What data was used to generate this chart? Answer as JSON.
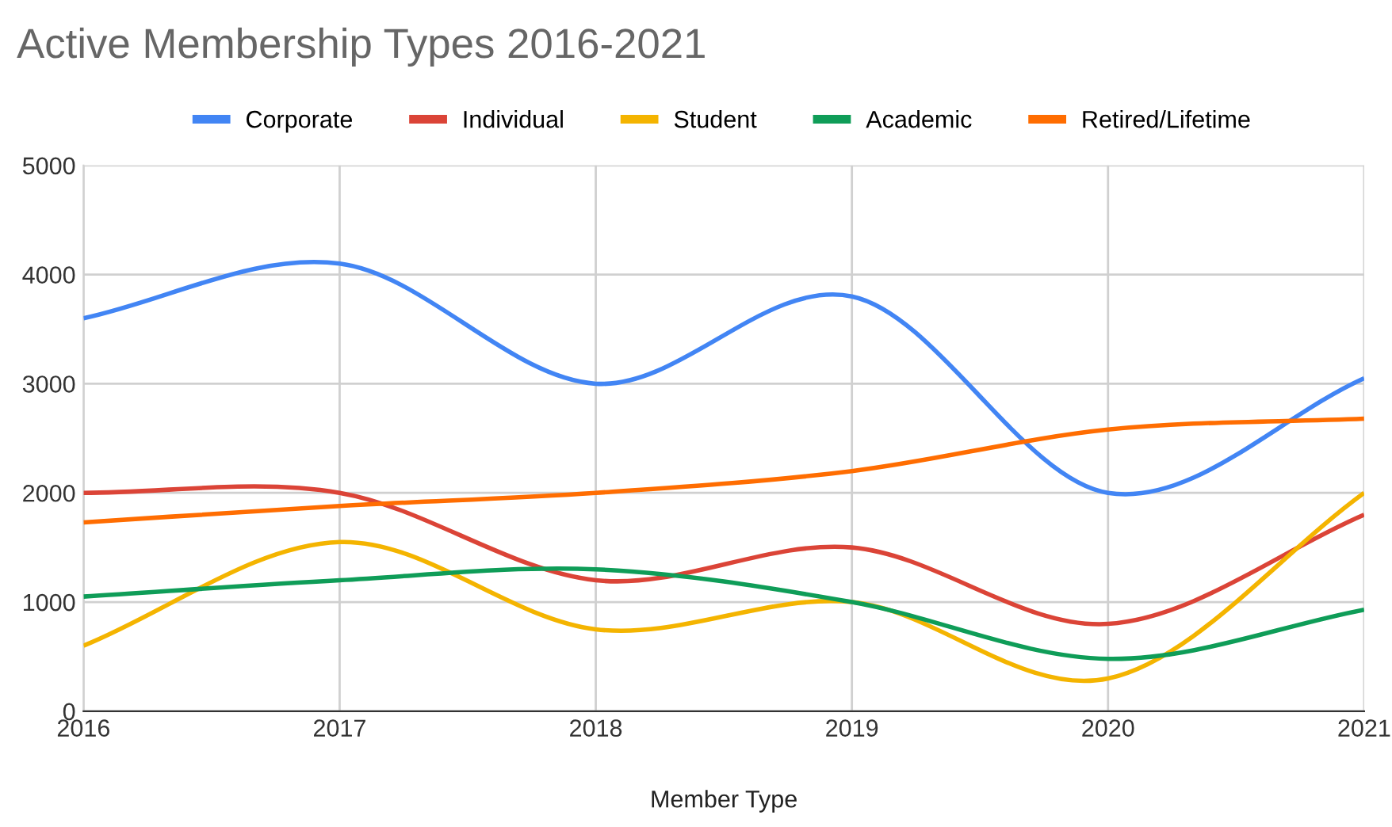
{
  "chart_data": {
    "type": "line",
    "title": "Active Membership Types 2016-2021",
    "xlabel": "Member Type",
    "x": [
      2016,
      2017,
      2018,
      2019,
      2020,
      2021
    ],
    "series": [
      {
        "name": "Corporate",
        "color": "#4285f4",
        "values": [
          3600,
          4100,
          3000,
          3800,
          2000,
          3050
        ]
      },
      {
        "name": "Individual",
        "color": "#db4437",
        "values": [
          2000,
          2000,
          1200,
          1500,
          800,
          1800
        ]
      },
      {
        "name": "Student",
        "color": "#f4b400",
        "values": [
          600,
          1550,
          750,
          1000,
          300,
          2000
        ]
      },
      {
        "name": "Academic",
        "color": "#0f9d58",
        "values": [
          1050,
          1200,
          1300,
          1000,
          480,
          930
        ]
      },
      {
        "name": "Retired/Lifetime",
        "color": "#ff6d01",
        "values": [
          1730,
          1880,
          2000,
          2200,
          2580,
          2680
        ]
      }
    ],
    "xlim": [
      2016,
      2021
    ],
    "xticks": [
      2016,
      2017,
      2018,
      2019,
      2020,
      2021
    ],
    "ylim": [
      0,
      5000
    ],
    "yticks": [
      0,
      1000,
      2000,
      3000,
      4000,
      5000
    ],
    "grid": true,
    "legend": "top",
    "marker": "none",
    "line_style": "solid"
  }
}
